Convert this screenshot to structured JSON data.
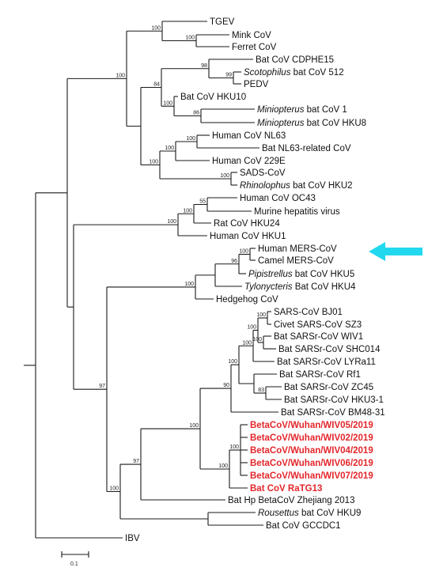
{
  "taxa": [
    {
      "id": "tgev",
      "label": [
        {
          "t": "TGEV"
        }
      ]
    },
    {
      "id": "mink",
      "label": [
        {
          "t": "Mink CoV"
        }
      ]
    },
    {
      "id": "ferret",
      "label": [
        {
          "t": "Ferret CoV"
        }
      ]
    },
    {
      "id": "cdphe15",
      "label": [
        {
          "t": "Bat CoV CDPHE15"
        }
      ]
    },
    {
      "id": "scoto",
      "label": [
        {
          "t": "Scotophilus",
          "i": true
        },
        {
          "t": " bat CoV 512"
        }
      ]
    },
    {
      "id": "pedv",
      "label": [
        {
          "t": "PEDV"
        }
      ]
    },
    {
      "id": "hku10",
      "label": [
        {
          "t": "Bat CoV HKU10"
        }
      ]
    },
    {
      "id": "mini1",
      "label": [
        {
          "t": "Miniopterus",
          "i": true
        },
        {
          "t": " bat CoV 1"
        }
      ]
    },
    {
      "id": "mini8",
      "label": [
        {
          "t": "Miniopterus",
          "i": true
        },
        {
          "t": " bat CoV HKU8"
        }
      ]
    },
    {
      "id": "nl63",
      "label": [
        {
          "t": "Human CoV NL63"
        }
      ]
    },
    {
      "id": "batnl63",
      "label": [
        {
          "t": "Bat NL63-related CoV"
        }
      ]
    },
    {
      "id": "h229e",
      "label": [
        {
          "t": "Human CoV 229E"
        }
      ]
    },
    {
      "id": "sads",
      "label": [
        {
          "t": "SADS-CoV"
        }
      ]
    },
    {
      "id": "rhino2",
      "label": [
        {
          "t": "Rhinolophus",
          "i": true
        },
        {
          "t": " bat CoV HKU2"
        }
      ]
    },
    {
      "id": "oc43",
      "label": [
        {
          "t": "Human CoV OC43"
        }
      ]
    },
    {
      "id": "mhv",
      "label": [
        {
          "t": "Murine hepatitis virus"
        }
      ]
    },
    {
      "id": "rat24",
      "label": [
        {
          "t": "Rat CoV HKU24"
        }
      ]
    },
    {
      "id": "hku1",
      "label": [
        {
          "t": "Human CoV HKU1"
        }
      ]
    },
    {
      "id": "hmers",
      "label": [
        {
          "t": "Human MERS-CoV"
        }
      ]
    },
    {
      "id": "cmers",
      "label": [
        {
          "t": "Camel MERS-CoV"
        }
      ]
    },
    {
      "id": "pipi5",
      "label": [
        {
          "t": "Pipistrellus",
          "i": true
        },
        {
          "t": " bat CoV HKU5"
        }
      ]
    },
    {
      "id": "tylo4",
      "label": [
        {
          "t": "Tylonycteris",
          "i": true
        },
        {
          "t": " Bat CoV HKU4"
        }
      ]
    },
    {
      "id": "hedge",
      "label": [
        {
          "t": "Hedgehog CoV"
        }
      ]
    },
    {
      "id": "bj01",
      "label": [
        {
          "t": "SARS-CoV BJ01"
        }
      ]
    },
    {
      "id": "sz3",
      "label": [
        {
          "t": "Civet SARS-CoV SZ3"
        }
      ]
    },
    {
      "id": "wiv1",
      "label": [
        {
          "t": "Bat SARSr-CoV WIV1"
        }
      ]
    },
    {
      "id": "shc014",
      "label": [
        {
          "t": "Bat SARSr-CoV SHC014"
        }
      ]
    },
    {
      "id": "lyra11",
      "label": [
        {
          "t": "Bat SARSr-CoV LYRa11"
        }
      ]
    },
    {
      "id": "rf1",
      "label": [
        {
          "t": "Bat SARSr-CoV Rf1"
        }
      ]
    },
    {
      "id": "zc45",
      "label": [
        {
          "t": "Bat SARSr-CoV ZC45"
        }
      ]
    },
    {
      "id": "hku31",
      "label": [
        {
          "t": "Bat SARSr-CoV HKU3-1"
        }
      ]
    },
    {
      "id": "bm48",
      "label": [
        {
          "t": "Bat SARSr-CoV BM48-31"
        }
      ]
    },
    {
      "id": "wiv05",
      "label": [
        {
          "t": "BetaCoV/Wuhan/WIV05/2019"
        }
      ],
      "red": true
    },
    {
      "id": "wiv02",
      "label": [
        {
          "t": "BetaCoV/Wuhan/WIV02/2019"
        }
      ],
      "red": true
    },
    {
      "id": "wiv04",
      "label": [
        {
          "t": "BetaCoV/Wuhan/WIV04/2019"
        }
      ],
      "red": true
    },
    {
      "id": "wiv06",
      "label": [
        {
          "t": "BetaCoV/Wuhan/WIV06/2019"
        }
      ],
      "red": true
    },
    {
      "id": "wiv07",
      "label": [
        {
          "t": "BetaCoV/Wuhan/WIV07/2019"
        }
      ],
      "red": true
    },
    {
      "id": "ratg13",
      "label": [
        {
          "t": "Bat CoV RaTG13"
        }
      ],
      "red": true
    },
    {
      "id": "zj2013",
      "label": [
        {
          "t": "Bat Hp BetaCoV Zhejiang 2013"
        }
      ]
    },
    {
      "id": "rous9",
      "label": [
        {
          "t": "Rousettus",
          "i": true
        },
        {
          "t": " bat CoV HKU9"
        }
      ]
    },
    {
      "id": "gccdc1",
      "label": [
        {
          "t": "Bat CoV GCCDC1"
        }
      ]
    },
    {
      "id": "ibv",
      "label": [
        {
          "t": "IBV"
        }
      ]
    }
  ],
  "bootstrap": [
    "100",
    "100",
    "100",
    "98",
    "99",
    "84",
    "86",
    "100",
    "100",
    "100",
    "100",
    "100",
    "55",
    "100",
    "100",
    "100",
    "100",
    "96",
    "100",
    "100",
    "100",
    "100",
    "100",
    "83",
    "90",
    "100",
    "100",
    "100",
    "97",
    "97",
    "100"
  ],
  "scale_bar": {
    "label": "0.1"
  },
  "highlight": {
    "target": "hmers",
    "color": "#22d8ef",
    "icon": "arrow-left-icon"
  },
  "colors": {
    "branch": "#1a1a1a",
    "highlight_taxa": "#e3262b",
    "arrow": "#22d8ef"
  }
}
